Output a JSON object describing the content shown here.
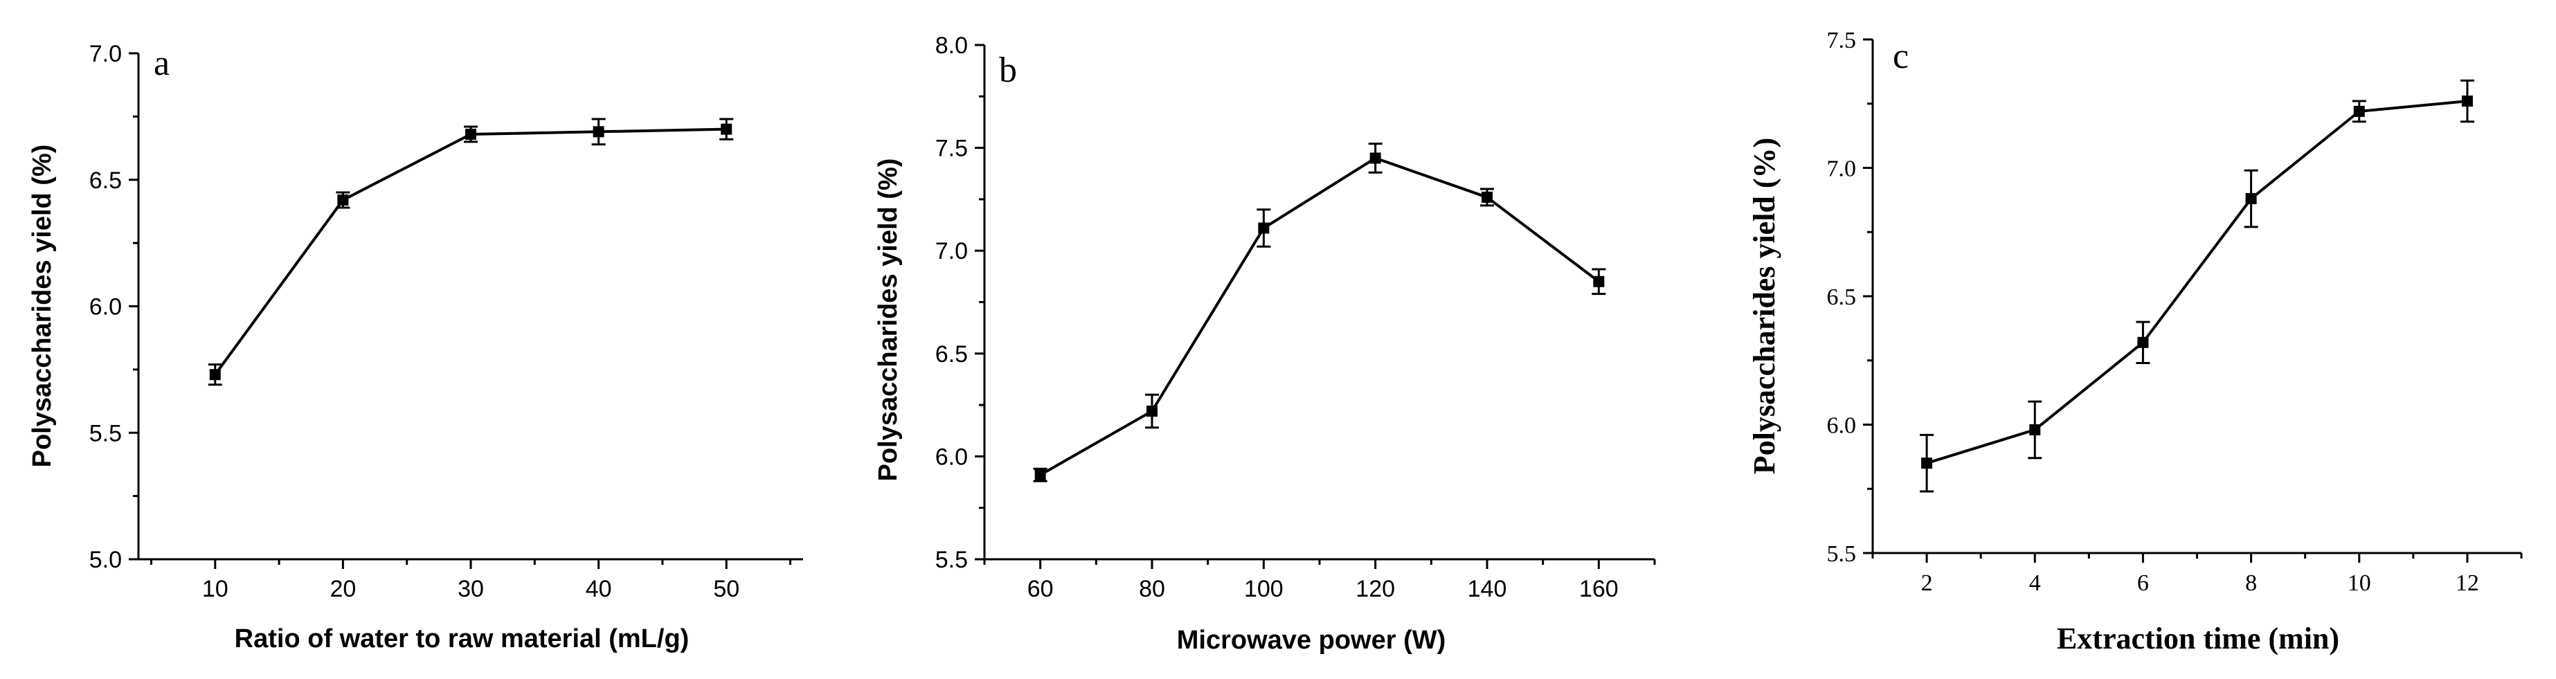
{
  "chart_data": [
    {
      "type": "line",
      "panel_label": "a",
      "xlabel": "Ratio of water to raw material (mL/g)",
      "ylabel": "Polysaccharides yield (%)",
      "xlim": [
        4,
        56
      ],
      "ylim": [
        5.0,
        7.0
      ],
      "xticks": [
        "10",
        "20",
        "30",
        "40",
        "50"
      ],
      "yticks": [
        "5.0",
        "5.5",
        "6.0",
        "6.5",
        "7.0"
      ],
      "x": [
        10,
        20,
        30,
        40,
        50
      ],
      "y": [
        5.73,
        6.42,
        6.68,
        6.69,
        6.7
      ],
      "err": [
        0.04,
        0.03,
        0.03,
        0.05,
        0.04
      ]
    },
    {
      "type": "line",
      "panel_label": "b",
      "xlabel": "Microwave power (W)",
      "ylabel": "Polysaccharides yield (%)",
      "xlim": [
        50,
        170
      ],
      "ylim": [
        5.5,
        8.0
      ],
      "xticks": [
        "60",
        "80",
        "100",
        "120",
        "140",
        "160"
      ],
      "yticks": [
        "5.5",
        "6.0",
        "6.5",
        "7.0",
        "7.5",
        "8.0"
      ],
      "x": [
        60,
        80,
        100,
        120,
        140,
        160
      ],
      "y": [
        5.91,
        6.22,
        7.11,
        7.45,
        7.26,
        6.85
      ],
      "err": [
        0.03,
        0.08,
        0.09,
        0.07,
        0.04,
        0.06
      ]
    },
    {
      "type": "line",
      "panel_label": "c",
      "xlabel": "Extraction time (min)",
      "ylabel": "Polysaccharides yield (%)",
      "xlim": [
        1,
        13
      ],
      "ylim": [
        5.5,
        7.5
      ],
      "xticks": [
        "2",
        "4",
        "6",
        "8",
        "10",
        "12"
      ],
      "yticks": [
        "5.5",
        "6.0",
        "6.5",
        "7.0",
        "7.5"
      ],
      "x": [
        2,
        4,
        6,
        8,
        10,
        12
      ],
      "y": [
        5.85,
        5.98,
        6.32,
        6.88,
        7.22,
        7.26
      ],
      "err": [
        0.11,
        0.11,
        0.08,
        0.11,
        0.04,
        0.08
      ]
    }
  ]
}
